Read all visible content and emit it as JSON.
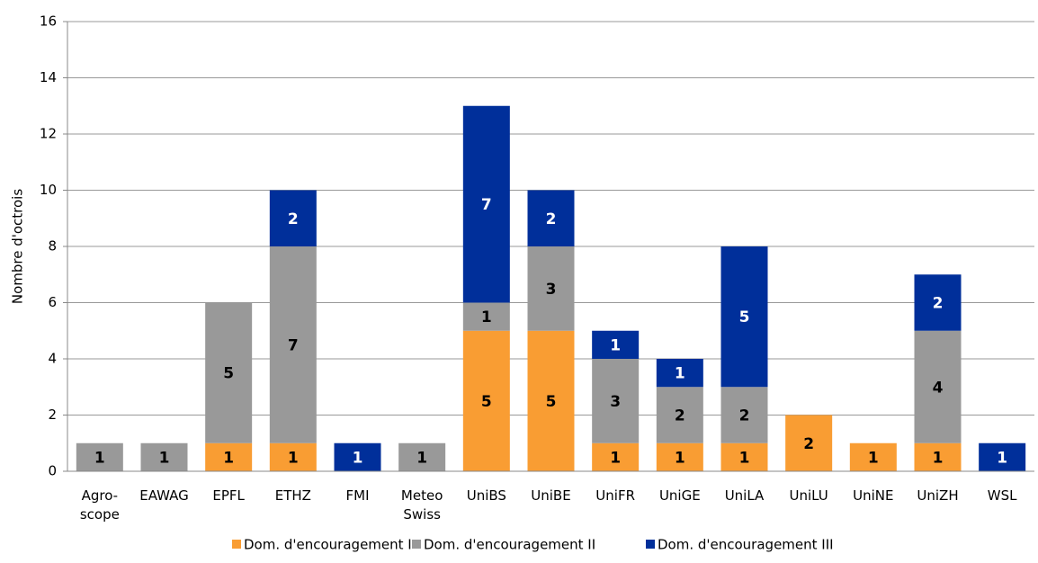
{
  "chart_data": {
    "type": "stacked_bar",
    "y_label": "Nombre d'octrois",
    "categories": [
      "Agro-\nscope",
      "EAWAG",
      "EPFL",
      "ETHZ",
      "FMI",
      "Meteo\nSwiss",
      "UniBS",
      "UniBE",
      "UniFR",
      "UniGE",
      "UniLA",
      "UniLU",
      "UniNE",
      "UniZH",
      "WSL"
    ],
    "series": [
      {
        "name": "Dom. d'encouragement I",
        "color": "#f99d33",
        "label_color": "#000000",
        "values": [
          0,
          0,
          1,
          1,
          0,
          0,
          5,
          5,
          1,
          1,
          1,
          2,
          1,
          1,
          0
        ]
      },
      {
        "name": "Dom. d'encouragement II",
        "color": "#999999",
        "label_color": "#000000",
        "values": [
          1,
          1,
          5,
          7,
          0,
          1,
          1,
          3,
          3,
          2,
          2,
          0,
          0,
          4,
          0
        ]
      },
      {
        "name": "Dom. d'encouragement III",
        "color": "#002f9a",
        "label_color": "#ffffff",
        "values": [
          0,
          0,
          0,
          2,
          1,
          0,
          7,
          2,
          1,
          1,
          5,
          0,
          0,
          2,
          1
        ]
      }
    ],
    "ylim": [
      0,
      16
    ],
    "yticks": [
      0,
      2,
      4,
      6,
      8,
      10,
      12,
      14,
      16
    ],
    "grid": true,
    "legend": "bottom"
  }
}
